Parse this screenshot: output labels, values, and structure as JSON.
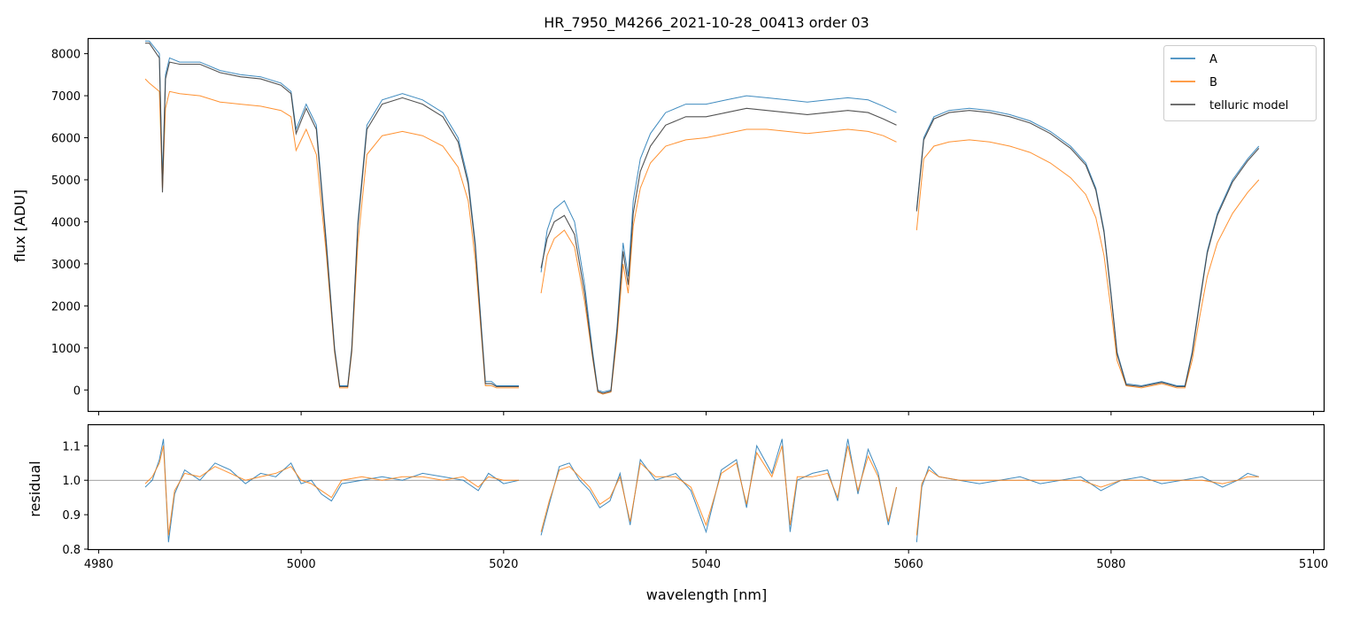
{
  "chart_data": {
    "type": "line",
    "title": "HR_7950_M4266_2021-10-28_00413  order 03",
    "xlabel": "wavelength [nm]",
    "xlim": [
      4979,
      5101
    ],
    "xticks": [
      4980,
      5000,
      5020,
      5040,
      5060,
      5080,
      5100
    ],
    "top_panel": {
      "ylabel": "flux [ADU]",
      "ylim": [
        -500,
        8350
      ],
      "yticks": [
        0,
        1000,
        2000,
        3000,
        4000,
        5000,
        6000,
        7000,
        8000
      ],
      "legend": [
        "A",
        "B",
        "telluric model"
      ],
      "segments": [
        {
          "x": [
            4984.6,
            4985,
            4986,
            4986.3,
            4986.6,
            4987,
            4988,
            4990,
            4992,
            4994,
            4996,
            4998,
            4999,
            4999.5,
            5000.5,
            5001.5,
            5002.5,
            5003.3,
            5003.8,
            5004.6,
            5005,
            5005.6,
            5006.5,
            5008,
            5010,
            5012,
            5014,
            5015.5,
            5016.5,
            5017.2,
            5017.8,
            5018.2,
            5018.8,
            5019.3,
            5020,
            5021.5
          ],
          "A": [
            8300,
            8300,
            8000,
            5000,
            7500,
            7900,
            7800,
            7800,
            7600,
            7500,
            7450,
            7300,
            7100,
            6200,
            6800,
            6300,
            3500,
            1000,
            100,
            100,
            1000,
            4000,
            6300,
            6900,
            7050,
            6900,
            6600,
            6000,
            5000,
            3500,
            1500,
            200,
            200,
            100,
            100,
            100
          ],
          "B": [
            7400,
            7300,
            7100,
            4800,
            6700,
            7100,
            7050,
            7000,
            6850,
            6800,
            6750,
            6650,
            6500,
            5700,
            6200,
            5600,
            3200,
            900,
            50,
            50,
            900,
            3500,
            5600,
            6050,
            6150,
            6050,
            5800,
            5300,
            4500,
            3100,
            1300,
            100,
            100,
            50,
            50,
            50
          ],
          "model": [
            8250,
            8250,
            7900,
            4700,
            7400,
            7800,
            7750,
            7750,
            7550,
            7450,
            7400,
            7250,
            7050,
            6100,
            6700,
            6200,
            3400,
            950,
            80,
            80,
            950,
            3900,
            6200,
            6800,
            6950,
            6800,
            6500,
            5900,
            4900,
            3400,
            1400,
            150,
            150,
            80,
            80,
            80
          ]
        },
        {
          "x": [
            5023.7,
            5024.3,
            5025,
            5026,
            5027,
            5028,
            5028.8,
            5029.3,
            5029.8,
            5030.6,
            5031.2,
            5031.8,
            5032.3,
            5032.8,
            5033.5,
            5034.5,
            5036,
            5038,
            5040,
            5042,
            5044,
            5046,
            5048,
            5050,
            5052,
            5054,
            5056,
            5057.5,
            5058.8
          ],
          "A": [
            2800,
            3800,
            4300,
            4500,
            4000,
            2500,
            900,
            0,
            -50,
            0,
            1500,
            3500,
            2700,
            4500,
            5500,
            6100,
            6600,
            6800,
            6800,
            6900,
            7000,
            6950,
            6900,
            6850,
            6900,
            6950,
            6900,
            6750,
            6600
          ],
          "B": [
            2300,
            3200,
            3600,
            3800,
            3400,
            2100,
            750,
            -50,
            -100,
            -50,
            1250,
            3000,
            2300,
            3900,
            4800,
            5400,
            5800,
            5950,
            6000,
            6100,
            6200,
            6200,
            6150,
            6100,
            6150,
            6200,
            6150,
            6050,
            5900
          ],
          "model": [
            2900,
            3600,
            4000,
            4150,
            3700,
            2300,
            800,
            -30,
            -80,
            -30,
            1400,
            3300,
            2500,
            4200,
            5200,
            5800,
            6300,
            6500,
            6500,
            6600,
            6700,
            6650,
            6600,
            6550,
            6600,
            6650,
            6600,
            6450,
            6300
          ]
        },
        {
          "x": [
            5060.8,
            5061.5,
            5062.5,
            5064,
            5066,
            5068,
            5070,
            5072,
            5074,
            5076,
            5077.5,
            5078.5,
            5079.3,
            5080,
            5080.6,
            5081.5,
            5083,
            5085,
            5086.5,
            5087.3,
            5088,
            5088.8,
            5089.5,
            5090.5,
            5092,
            5093.5,
            5094.6
          ],
          "A": [
            4300,
            6000,
            6500,
            6650,
            6700,
            6650,
            6550,
            6400,
            6150,
            5800,
            5400,
            4800,
            3800,
            2300,
            900,
            150,
            100,
            200,
            100,
            100,
            900,
            2200,
            3300,
            4200,
            5000,
            5500,
            5800
          ],
          "B": [
            3800,
            5500,
            5800,
            5900,
            5950,
            5900,
            5800,
            5650,
            5400,
            5050,
            4650,
            4100,
            3200,
            1900,
            700,
            100,
            50,
            150,
            50,
            50,
            700,
            1800,
            2700,
            3500,
            4200,
            4700,
            5000
          ],
          "model": [
            4250,
            5950,
            6450,
            6600,
            6650,
            6600,
            6500,
            6350,
            6100,
            5750,
            5350,
            4750,
            3750,
            2250,
            850,
            120,
            80,
            180,
            80,
            80,
            850,
            2150,
            3250,
            4150,
            4950,
            5450,
            5750
          ]
        }
      ]
    },
    "bottom_panel": {
      "ylabel": "residual",
      "ylim": [
        0.8,
        1.16
      ],
      "yticks": [
        0.8,
        0.9,
        1.0,
        1.1
      ],
      "reference_line": 1.0,
      "segments": [
        {
          "x": [
            4984.6,
            4985.3,
            4986,
            4986.4,
            4986.9,
            4987.5,
            4988.5,
            4990,
            4991.5,
            4993,
            4994.5,
            4996,
            4997.5,
            4999,
            5000,
            5001,
            5002,
            5003,
            5004,
            5006,
            5008,
            5010,
            5012,
            5014,
            5016,
            5017.5,
            5018.5,
            5020,
            5021.5
          ],
          "A": [
            0.98,
            1.0,
            1.06,
            1.12,
            0.82,
            0.96,
            1.03,
            1.0,
            1.05,
            1.03,
            0.99,
            1.02,
            1.01,
            1.05,
            0.99,
            1.0,
            0.96,
            0.94,
            0.99,
            1.0,
            1.01,
            1.0,
            1.02,
            1.01,
            1.0,
            0.97,
            1.02,
            0.99,
            1.0
          ],
          "B": [
            0.99,
            1.01,
            1.05,
            1.1,
            0.84,
            0.97,
            1.02,
            1.01,
            1.04,
            1.02,
            1.0,
            1.01,
            1.02,
            1.04,
            1.0,
            0.99,
            0.97,
            0.95,
            1.0,
            1.01,
            1.0,
            1.01,
            1.01,
            1.0,
            1.01,
            0.98,
            1.01,
            1.0,
            1.0
          ]
        },
        {
          "x": [
            5023.7,
            5024.5,
            5025.5,
            5026.5,
            5027.5,
            5028.5,
            5029.5,
            5030.5,
            5031.5,
            5032.5,
            5033.5,
            5035,
            5037,
            5038.5,
            5040,
            5041.5,
            5043,
            5044,
            5045,
            5046.5,
            5047.5,
            5048.3,
            5049,
            5050.5,
            5052,
            5053,
            5054,
            5055,
            5056,
            5057,
            5058,
            5058.8
          ],
          "A": [
            0.84,
            0.93,
            1.04,
            1.05,
            1.0,
            0.97,
            0.92,
            0.94,
            1.02,
            0.87,
            1.06,
            1.0,
            1.02,
            0.97,
            0.85,
            1.03,
            1.06,
            0.92,
            1.1,
            1.02,
            1.12,
            0.85,
            1.0,
            1.02,
            1.03,
            0.94,
            1.12,
            0.96,
            1.09,
            1.02,
            0.87,
            0.98
          ],
          "B": [
            0.85,
            0.94,
            1.03,
            1.04,
            1.01,
            0.98,
            0.93,
            0.95,
            1.01,
            0.88,
            1.05,
            1.01,
            1.01,
            0.98,
            0.87,
            1.02,
            1.05,
            0.93,
            1.08,
            1.01,
            1.1,
            0.87,
            1.01,
            1.01,
            1.02,
            0.95,
            1.1,
            0.97,
            1.07,
            1.01,
            0.88,
            0.98
          ]
        },
        {
          "x": [
            5060.8,
            5061.3,
            5062,
            5063,
            5065,
            5067,
            5069,
            5071,
            5073,
            5075,
            5077,
            5079,
            5081,
            5083,
            5085,
            5087,
            5089,
            5091,
            5092.5,
            5093.5,
            5094.6
          ],
          "A": [
            0.82,
            0.98,
            1.04,
            1.01,
            1.0,
            0.99,
            1.0,
            1.01,
            0.99,
            1.0,
            1.01,
            0.97,
            1.0,
            1.01,
            0.99,
            1.0,
            1.01,
            0.98,
            1.0,
            1.02,
            1.01
          ],
          "B": [
            0.84,
            0.99,
            1.03,
            1.01,
            1.0,
            1.0,
            1.0,
            1.0,
            1.0,
            1.0,
            1.0,
            0.98,
            1.0,
            1.0,
            1.0,
            1.0,
            1.0,
            0.99,
            1.0,
            1.01,
            1.01
          ]
        }
      ]
    },
    "colors": {
      "A": "#1f77b4",
      "B": "#ff7f0e",
      "model": "#404040",
      "reference": "#808080"
    }
  }
}
